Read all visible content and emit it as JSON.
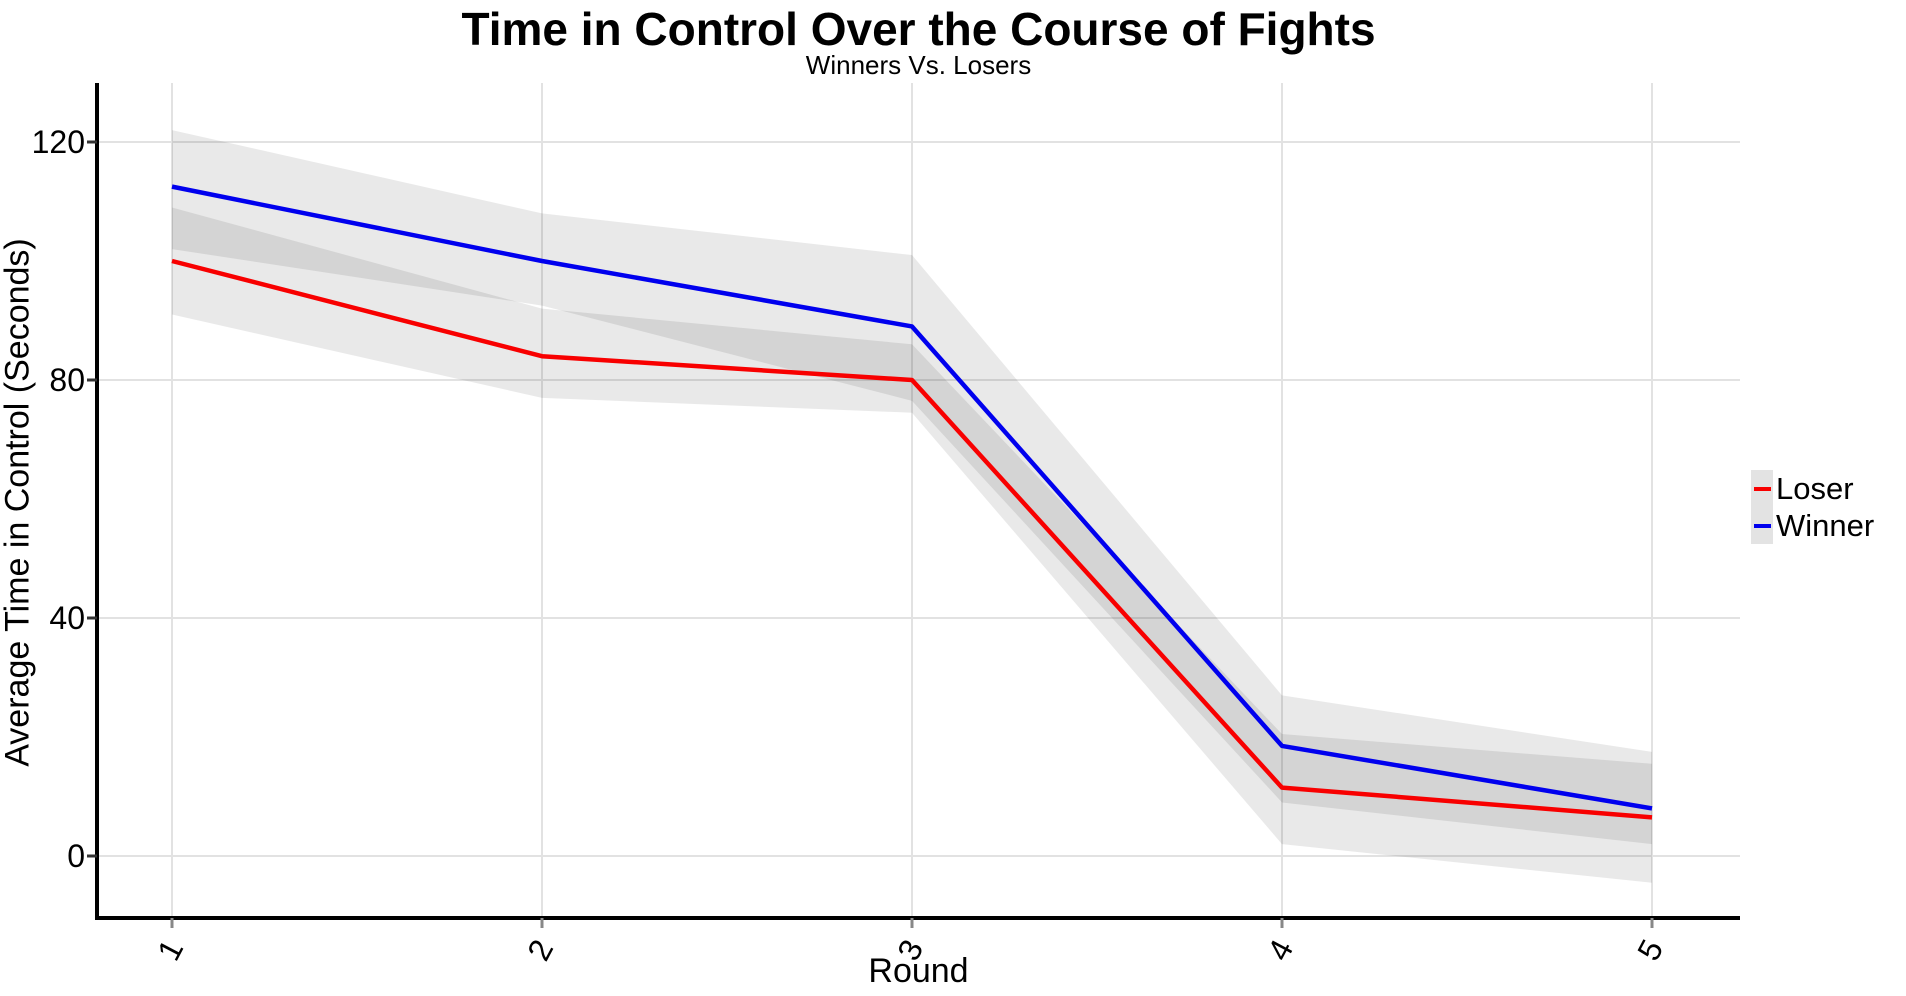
{
  "chart_data": {
    "type": "line",
    "title": "Time in Control Over the Course of Fights",
    "subtitle": "Winners Vs. Losers",
    "xlabel": "Round",
    "ylabel": "Average Time in Control (Seconds)",
    "x": [
      1,
      2,
      3,
      4,
      5
    ],
    "x_tick_labels": [
      "1",
      "2",
      "3",
      "4",
      "5"
    ],
    "y_ticks": [
      0,
      40,
      80,
      120
    ],
    "ylim": [
      -10.5,
      130
    ],
    "grid": true,
    "legend_position": "right",
    "background_color": "#ffffff",
    "gridline_color": "#e2e2e2",
    "axis_color": "#000000",
    "band_color": "rgba(0,0,0,0.085)",
    "series": [
      {
        "name": "Loser",
        "color": "#f80000",
        "values": [
          100,
          84,
          80,
          11.5,
          6.5
        ],
        "band_high": [
          109,
          92,
          86,
          20.5,
          15.5
        ],
        "band_low": [
          91,
          77,
          74.5,
          2,
          -4.5
        ]
      },
      {
        "name": "Winner",
        "color": "#0000ee",
        "values": [
          112.5,
          100,
          89,
          18.5,
          8
        ],
        "band_high": [
          122,
          108,
          101,
          27,
          17.5
        ],
        "band_low": [
          102,
          92.5,
          76.5,
          9,
          2
        ]
      }
    ]
  }
}
